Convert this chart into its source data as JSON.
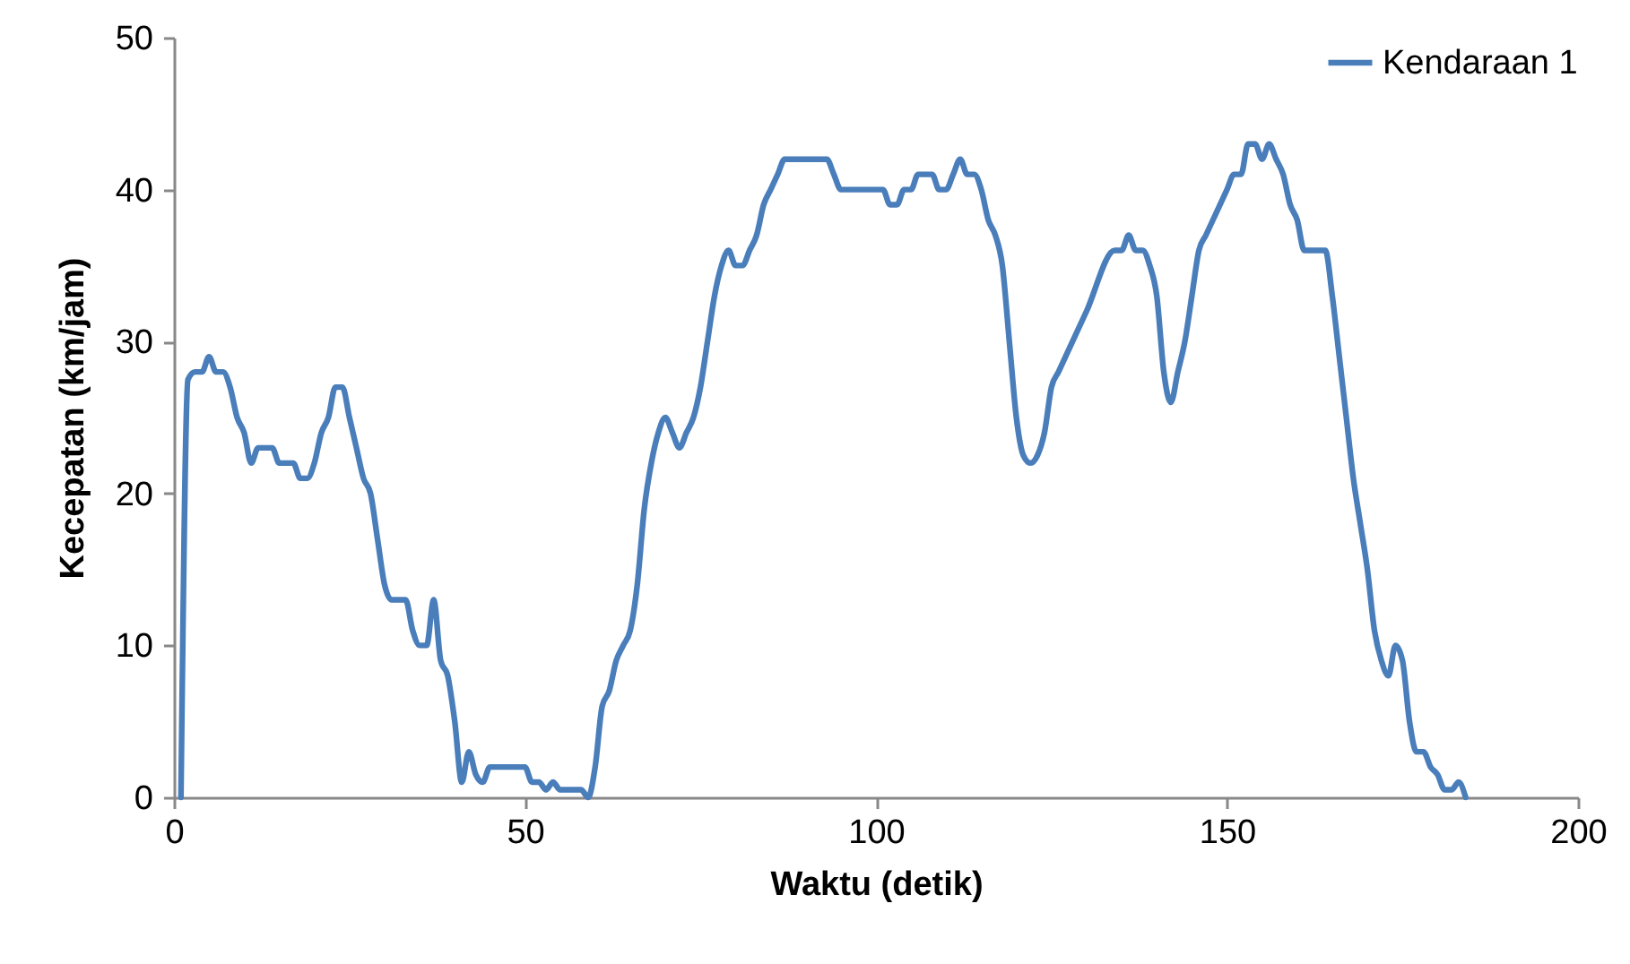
{
  "chart_data": {
    "type": "line",
    "xlabel": "Waktu (detik)",
    "ylabel": "Kecepatan (km/jam)",
    "xlim": [
      0,
      200
    ],
    "xticks": [
      0,
      50,
      100,
      150,
      200
    ],
    "ylim": [
      0,
      50
    ],
    "yticks": [
      0,
      10,
      20,
      30,
      40,
      50
    ],
    "grid": false,
    "legend": "top right",
    "marker": "none",
    "line_style": "solid",
    "series": [
      {
        "name": "Kendaraan 1",
        "color": "#4a7ebb",
        "x": [
          1,
          2,
          3,
          4,
          5,
          6,
          7,
          8,
          9,
          10,
          11,
          12,
          13,
          14,
          15,
          16,
          17,
          18,
          19,
          20,
          21,
          22,
          23,
          24,
          25,
          26,
          27,
          28,
          29,
          30,
          31,
          32,
          33,
          34,
          35,
          36,
          37,
          38,
          39,
          40,
          41,
          42,
          43,
          44,
          45,
          46,
          47,
          48,
          49,
          50,
          51,
          52,
          53,
          54,
          55,
          56,
          57,
          58,
          59,
          60,
          61,
          62,
          63,
          64,
          65,
          66,
          67,
          68,
          69,
          70,
          71,
          72,
          73,
          74,
          75,
          76,
          77,
          78,
          79,
          80,
          81,
          82,
          83,
          84,
          85,
          86,
          87,
          88,
          89,
          90,
          91,
          92,
          93,
          94,
          95,
          96,
          97,
          98,
          99,
          100,
          101,
          102,
          103,
          104,
          105,
          106,
          107,
          108,
          109,
          110,
          111,
          112,
          113,
          114,
          115,
          116,
          117,
          118,
          119,
          120,
          121,
          122,
          123,
          124,
          125,
          126,
          130,
          134,
          135,
          136,
          137,
          138,
          139,
          140,
          141,
          142,
          143,
          144,
          145,
          146,
          147,
          148,
          149,
          150,
          151,
          152,
          153,
          154,
          155,
          156,
          157,
          158,
          159,
          160,
          161,
          162,
          163,
          164,
          165,
          166,
          167,
          168,
          169,
          170,
          171,
          172,
          173,
          174,
          175,
          176,
          177,
          178,
          179,
          180,
          181,
          182,
          183,
          184
        ],
        "values": [
          0,
          27.5,
          28,
          28,
          29,
          28,
          28,
          27,
          25,
          24,
          22,
          23,
          23,
          23,
          22,
          22,
          22,
          21,
          21,
          22,
          24,
          25,
          27,
          27,
          25,
          23,
          21,
          20,
          17,
          14,
          13,
          13,
          13,
          11,
          10,
          10,
          13,
          9,
          8,
          5,
          1,
          3,
          1.5,
          1,
          2,
          2,
          2,
          2,
          2,
          2,
          1,
          1,
          0.5,
          1,
          0.5,
          0.5,
          0.5,
          0.5,
          0,
          2,
          6,
          7,
          9,
          10,
          11,
          14,
          19,
          22,
          24,
          25,
          24,
          23,
          24,
          25,
          27,
          30,
          33,
          35,
          36,
          35,
          35,
          36,
          37,
          39,
          40,
          41,
          42,
          42,
          42,
          42,
          42,
          42,
          42,
          41,
          40,
          40,
          40,
          40,
          40,
          40,
          40,
          39,
          39,
          40,
          40,
          41,
          41,
          41,
          40,
          40,
          41,
          42,
          41,
          41,
          40,
          38,
          37,
          35,
          30,
          25,
          22.5,
          22,
          22.5,
          24,
          27,
          28,
          32,
          36,
          36,
          37,
          36,
          36,
          35,
          33,
          28,
          26,
          28,
          30,
          33,
          36,
          37,
          38,
          39,
          40,
          41,
          41,
          43,
          43,
          42,
          43,
          42,
          41,
          39,
          38,
          36,
          36,
          36,
          36,
          33,
          29,
          25,
          21,
          18,
          15,
          11,
          9,
          8,
          10,
          9,
          5,
          3,
          3,
          2,
          1.5,
          0.5,
          0.5,
          1,
          0
        ]
      }
    ]
  }
}
